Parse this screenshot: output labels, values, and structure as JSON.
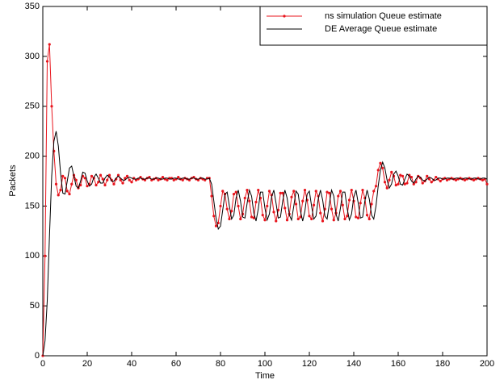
{
  "chart_data": {
    "type": "line",
    "x_label": "Time",
    "y_label": "Packets",
    "xlim": [
      0,
      200
    ],
    "ylim": [
      0,
      350
    ],
    "xticks": [
      0,
      20,
      40,
      60,
      80,
      100,
      120,
      140,
      160,
      180,
      200
    ],
    "yticks": [
      0,
      50,
      100,
      150,
      200,
      250,
      300,
      350
    ],
    "grid": false,
    "legend": "upper right",
    "x": [
      0,
      1,
      2,
      3,
      4,
      5,
      6,
      7,
      8,
      9,
      10,
      11,
      12,
      13,
      14,
      15,
      16,
      17,
      18,
      19,
      20,
      21,
      22,
      23,
      24,
      25,
      26,
      27,
      28,
      29,
      30,
      31,
      32,
      33,
      34,
      35,
      36,
      37,
      38,
      39,
      40,
      41,
      42,
      43,
      44,
      45,
      46,
      47,
      48,
      49,
      50,
      51,
      52,
      53,
      54,
      55,
      56,
      57,
      58,
      59,
      60,
      61,
      62,
      63,
      64,
      65,
      66,
      67,
      68,
      69,
      70,
      71,
      72,
      73,
      74,
      75,
      76,
      77,
      78,
      79,
      80,
      81,
      82,
      83,
      84,
      85,
      86,
      87,
      88,
      89,
      90,
      91,
      92,
      93,
      94,
      95,
      96,
      97,
      98,
      99,
      100,
      101,
      102,
      103,
      104,
      105,
      106,
      107,
      108,
      109,
      110,
      111,
      112,
      113,
      114,
      115,
      116,
      117,
      118,
      119,
      120,
      121,
      122,
      123,
      124,
      125,
      126,
      127,
      128,
      129,
      130,
      131,
      132,
      133,
      134,
      135,
      136,
      137,
      138,
      139,
      140,
      141,
      142,
      143,
      144,
      145,
      146,
      147,
      148,
      149,
      150,
      151,
      152,
      153,
      154,
      155,
      156,
      157,
      158,
      159,
      160,
      161,
      162,
      163,
      164,
      165,
      166,
      167,
      168,
      169,
      170,
      171,
      172,
      173,
      174,
      175,
      176,
      177,
      178,
      179,
      180,
      181,
      182,
      183,
      184,
      185,
      186,
      187,
      188,
      189,
      190,
      191,
      192,
      193,
      194,
      195,
      196,
      197,
      198,
      199,
      200
    ],
    "series": [
      {
        "name": "ns simulation Queue estimate",
        "color": "#e8141c",
        "marker": "point",
        "values": [
          0,
          100,
          295,
          312,
          250,
          205,
          172,
          161,
          166,
          180,
          178,
          165,
          162,
          172,
          181,
          176,
          168,
          171,
          180,
          178,
          170,
          172,
          180,
          178,
          171,
          174,
          181,
          177,
          171,
          176,
          181,
          176,
          172,
          177,
          181,
          176,
          173,
          178,
          180,
          176,
          174,
          178,
          176,
          177,
          179,
          177,
          176,
          178,
          179,
          176,
          177,
          178,
          176,
          177,
          179,
          177,
          176,
          178,
          178,
          176,
          177,
          179,
          177,
          176,
          178,
          177,
          176,
          178,
          179,
          177,
          176,
          178,
          177,
          176,
          178,
          178,
          160,
          140,
          130,
          133,
          150,
          165,
          162,
          147,
          137,
          145,
          162,
          164,
          150,
          137,
          142,
          158,
          166,
          155,
          139,
          138,
          154,
          166,
          158,
          141,
          136,
          150,
          165,
          161,
          144,
          135,
          146,
          163,
          163,
          148,
          136,
          142,
          159,
          165,
          152,
          137,
          139,
          155,
          166,
          156,
          140,
          137,
          151,
          165,
          160,
          143,
          135,
          147,
          164,
          163,
          147,
          136,
          143,
          160,
          165,
          151,
          137,
          140,
          156,
          166,
          155,
          139,
          138,
          153,
          166,
          158,
          141,
          137,
          152,
          165,
          170,
          186,
          193,
          188,
          174,
          168,
          176,
          184,
          180,
          171,
          172,
          181,
          180,
          172,
          173,
          181,
          179,
          172,
          174,
          180,
          178,
          173,
          175,
          180,
          177,
          174,
          176,
          179,
          177,
          175,
          177,
          178,
          176,
          177,
          178,
          177,
          176,
          177,
          178,
          177,
          176,
          177,
          178,
          177,
          176,
          177,
          178,
          177,
          176,
          177,
          172
        ]
      },
      {
        "name": "DE Average Queue estimate",
        "color": "#000000",
        "marker": "none",
        "values": [
          0,
          15,
          55,
          120,
          180,
          215,
          225,
          210,
          183,
          163,
          162,
          175,
          188,
          190,
          180,
          170,
          168,
          175,
          184,
          183,
          175,
          170,
          172,
          179,
          182,
          178,
          173,
          173,
          178,
          181,
          179,
          175,
          175,
          178,
          180,
          178,
          176,
          176,
          178,
          179,
          178,
          177,
          177,
          178,
          178,
          177,
          177,
          178,
          178,
          177,
          177,
          178,
          178,
          177,
          177,
          178,
          178,
          177,
          177,
          178,
          178,
          177,
          177,
          178,
          178,
          177,
          177,
          178,
          178,
          177,
          177,
          178,
          178,
          177,
          177,
          178,
          172,
          155,
          138,
          127,
          130,
          146,
          162,
          164,
          150,
          137,
          141,
          158,
          166,
          155,
          139,
          138,
          153,
          166,
          160,
          143,
          135,
          147,
          164,
          164,
          148,
          136,
          142,
          159,
          166,
          153,
          138,
          139,
          155,
          166,
          158,
          141,
          136,
          150,
          165,
          162,
          145,
          135,
          145,
          162,
          165,
          150,
          137,
          140,
          157,
          166,
          156,
          140,
          137,
          152,
          166,
          160,
          142,
          135,
          148,
          164,
          164,
          148,
          136,
          142,
          159,
          166,
          153,
          138,
          139,
          155,
          166,
          157,
          141,
          137,
          150,
          170,
          186,
          194,
          188,
          176,
          168,
          172,
          182,
          185,
          180,
          172,
          171,
          177,
          182,
          180,
          175,
          173,
          177,
          180,
          179,
          176,
          175,
          177,
          179,
          178,
          176,
          176,
          178,
          178,
          177,
          177,
          178,
          178,
          177,
          177,
          178,
          178,
          177,
          177,
          178,
          178,
          177,
          177,
          178,
          178,
          177,
          177,
          178,
          178,
          177
        ]
      }
    ]
  }
}
